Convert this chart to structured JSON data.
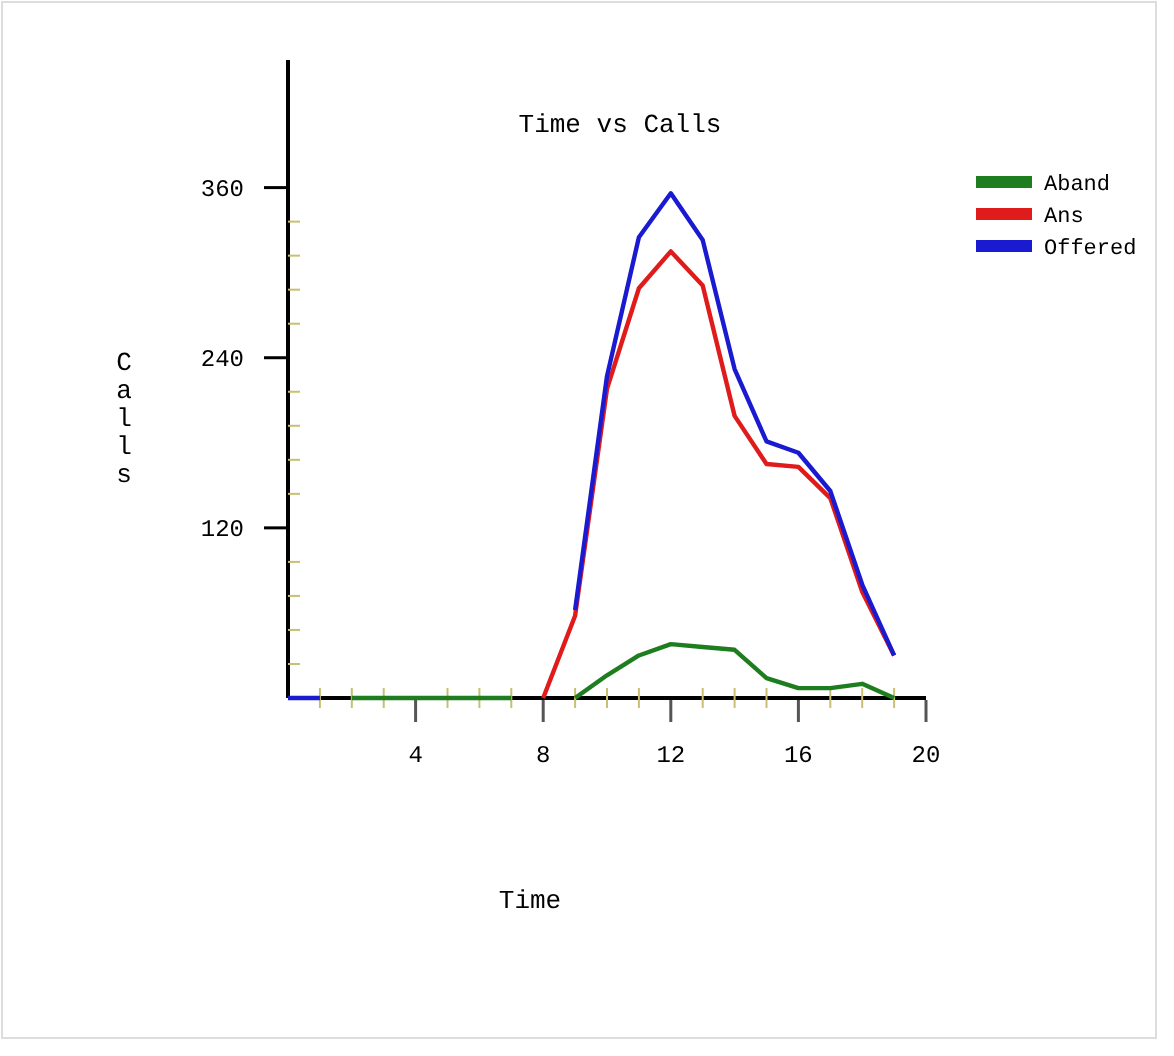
{
  "chart_data": {
    "type": "line",
    "title": "Time vs Calls",
    "xlabel": "Time",
    "ylabel": "Calls",
    "x": [
      0,
      1,
      2,
      3,
      4,
      5,
      6,
      7,
      8,
      9,
      10,
      11,
      12,
      13,
      14,
      15,
      16,
      17,
      18,
      19
    ],
    "series": [
      {
        "name": "Aband",
        "color": "#1e7d1e",
        "values": [
          null,
          null,
          0,
          0,
          0,
          0,
          0,
          0,
          null,
          0,
          16,
          30,
          38,
          36,
          34,
          14,
          7,
          7,
          10,
          0
        ]
      },
      {
        "name": "Ans",
        "color": "#e01b1b",
        "values": [
          null,
          null,
          null,
          null,
          null,
          null,
          null,
          null,
          0,
          58,
          218,
          289,
          315,
          291,
          199,
          165,
          163,
          141,
          75,
          30
        ]
      },
      {
        "name": "Offered",
        "color": "#1a1ad0",
        "values": [
          0,
          0,
          null,
          null,
          null,
          null,
          null,
          null,
          null,
          62,
          227,
          325,
          356,
          323,
          232,
          181,
          173,
          146,
          80,
          30
        ]
      }
    ],
    "xlim": [
      0,
      20
    ],
    "xticks": [
      {
        "value": 1,
        "label": null
      },
      {
        "value": 2,
        "label": null
      },
      {
        "value": 3,
        "label": null
      },
      4,
      {
        "value": 5,
        "label": null
      },
      {
        "value": 6,
        "label": null
      },
      {
        "value": 7,
        "label": null
      },
      8,
      {
        "value": 9,
        "label": null
      },
      {
        "value": 10,
        "label": null
      },
      {
        "value": 11,
        "label": null
      },
      12,
      {
        "value": 13,
        "label": null
      },
      {
        "value": 14,
        "label": null
      },
      {
        "value": 15,
        "label": null
      },
      16,
      {
        "value": 17,
        "label": null
      },
      {
        "value": 18,
        "label": null
      },
      {
        "value": 19,
        "label": null
      },
      20
    ],
    "ylim": [
      0,
      450
    ],
    "yticks": [
      {
        "value": 24,
        "label": null
      },
      {
        "value": 48,
        "label": null
      },
      {
        "value": 72,
        "label": null
      },
      {
        "value": 96,
        "label": null
      },
      120,
      {
        "value": 144,
        "label": null
      },
      {
        "value": 168,
        "label": null
      },
      {
        "value": 192,
        "label": null
      },
      {
        "value": 216,
        "label": null
      },
      240,
      {
        "value": 264,
        "label": null
      },
      {
        "value": 288,
        "label": null
      },
      {
        "value": 312,
        "label": null
      },
      {
        "value": 336,
        "label": null
      },
      360
    ],
    "grid": false,
    "legend": "top right",
    "marker": "none",
    "line_style": "solid"
  }
}
